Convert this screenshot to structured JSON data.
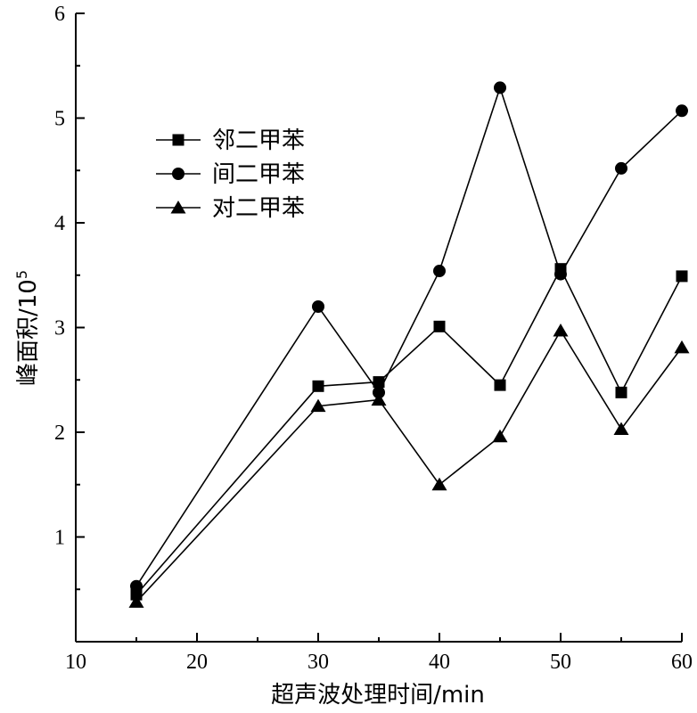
{
  "chart_data": {
    "type": "line",
    "title": "",
    "xlabel": "超声波处理时间/min",
    "ylabel_main": "峰面积/10",
    "ylabel_sup": "5",
    "xlim": [
      10,
      60
    ],
    "ylim": [
      0,
      6
    ],
    "xticks": [
      10,
      20,
      30,
      40,
      50,
      60
    ],
    "yticks": [
      1,
      2,
      3,
      4,
      5,
      6
    ],
    "grid": false,
    "legend_position": "upper-left",
    "x": [
      15,
      30,
      35,
      40,
      45,
      50,
      55,
      60
    ],
    "series": [
      {
        "name": "邻二甲苯",
        "marker": "square",
        "values": [
          0.45,
          2.44,
          2.48,
          3.01,
          2.45,
          3.56,
          2.38,
          3.49
        ]
      },
      {
        "name": "间二甲苯",
        "marker": "circle",
        "values": [
          0.53,
          3.2,
          2.38,
          3.54,
          5.29,
          3.51,
          4.52,
          5.07
        ]
      },
      {
        "name": "对二甲苯",
        "marker": "triangle",
        "values": [
          0.38,
          2.25,
          2.31,
          1.5,
          1.96,
          2.97,
          2.03,
          2.81
        ]
      }
    ]
  }
}
